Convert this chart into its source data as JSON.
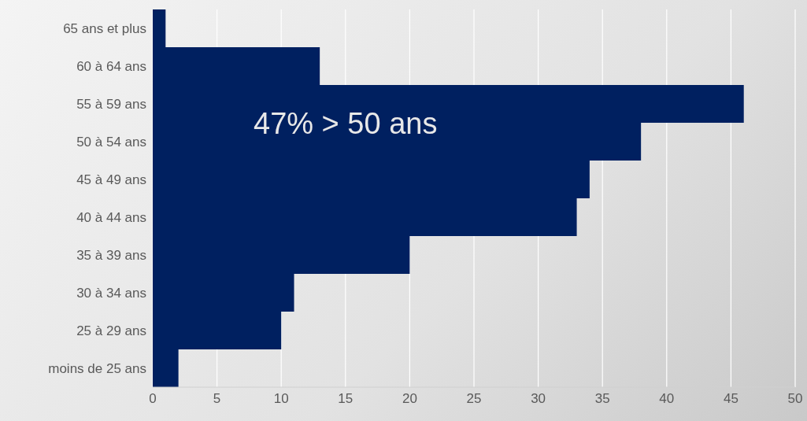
{
  "chart_data": {
    "type": "bar",
    "orientation": "horizontal",
    "categories": [
      "65 ans et plus",
      "60 à 64 ans",
      "55 à 59 ans",
      "50 à 54 ans",
      "45 à 49 ans",
      "40 à 44 ans",
      "35 à 39 ans",
      "30 à 34 ans",
      "25 à 29 ans",
      "moins de 25 ans"
    ],
    "values": [
      1,
      13,
      46,
      38,
      34,
      33,
      20,
      11,
      10,
      2
    ],
    "color": "#002060",
    "xlim": [
      0,
      50
    ],
    "xticks": [
      0,
      5,
      10,
      15,
      20,
      25,
      30,
      35,
      40,
      45,
      50
    ],
    "grid": "x",
    "annotations": [
      "47% > 50 ans"
    ]
  }
}
